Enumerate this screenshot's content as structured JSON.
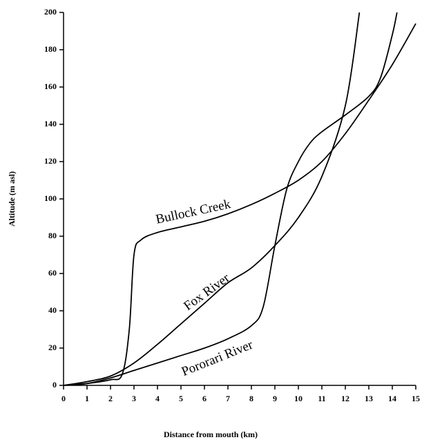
{
  "chart_data": {
    "type": "line",
    "x_label": "Distance from mouth (km)",
    "y_label": "Altitude (m asl)",
    "xlim": [
      0,
      15
    ],
    "ylim": [
      0,
      200
    ],
    "xticks": [
      0,
      1,
      2,
      3,
      4,
      5,
      6,
      7,
      8,
      9,
      10,
      11,
      12,
      13,
      14,
      15
    ],
    "yticks": [
      0,
      20,
      40,
      60,
      80,
      100,
      120,
      140,
      160,
      180,
      200
    ],
    "grid": false,
    "series": [
      {
        "name": "Bullock Creek",
        "color": "#000000",
        "x": [
          0,
          1,
          2,
          2.5,
          2.8,
          3,
          3.3,
          4,
          5,
          6,
          7,
          8,
          9,
          10,
          11,
          12,
          13,
          14,
          15
        ],
        "values": [
          0,
          1,
          3,
          6,
          30,
          70,
          78,
          82,
          85,
          88,
          92,
          97,
          103,
          110,
          120,
          135,
          153,
          172,
          194
        ]
      },
      {
        "name": "Fox River",
        "color": "#000000",
        "x": [
          0,
          1,
          2,
          3,
          4,
          5,
          6,
          7,
          8,
          9,
          10,
          11,
          12,
          12.6
        ],
        "values": [
          0,
          2,
          5,
          12,
          22,
          33,
          44,
          55,
          63,
          75,
          90,
          112,
          150,
          200
        ]
      },
      {
        "name": "Pororari River",
        "color": "#000000",
        "x": [
          0,
          1,
          2,
          3,
          4,
          5,
          6,
          7,
          8,
          8.5,
          9,
          9.5,
          10,
          10.5,
          11,
          12,
          13,
          13.5,
          14,
          14.2
        ],
        "values": [
          0,
          1,
          4,
          8,
          12,
          16,
          20,
          25,
          32,
          42,
          75,
          105,
          120,
          130,
          136,
          145,
          155,
          165,
          188,
          200
        ]
      }
    ]
  }
}
